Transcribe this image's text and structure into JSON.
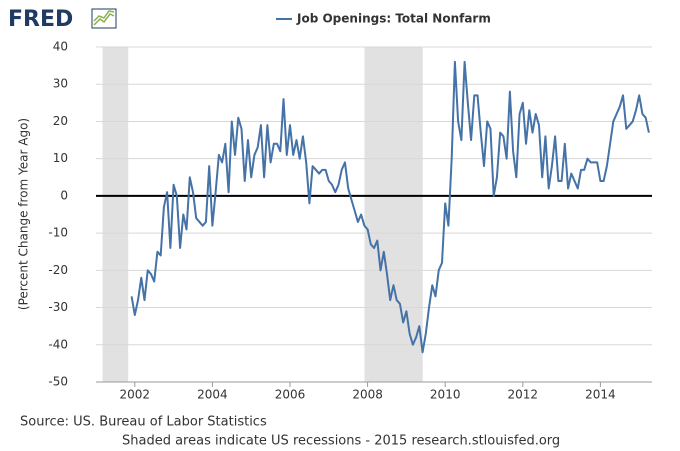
{
  "logo": "FRED",
  "chart_data": {
    "type": "line",
    "ylabel": "(Percent Change from Year Ago)",
    "source": "Source: US. Bureau of Labor Statistics",
    "note": "Shaded areas indicate US recessions - 2015 research.stlouisfed.org",
    "xlim": [
      2001,
      2015.33
    ],
    "xticks": [
      2002,
      2004,
      2006,
      2008,
      2010,
      2012,
      2014
    ],
    "ylim": [
      -50,
      40
    ],
    "yticks": [
      -50,
      -40,
      -30,
      -20,
      -10,
      0,
      10,
      20,
      30,
      40
    ],
    "grid": true,
    "zero_line": true,
    "recessions": [
      [
        2001.17,
        2001.83
      ],
      [
        2007.92,
        2009.42
      ]
    ],
    "x": [
      2001.917,
      2002.0,
      2002.083,
      2002.167,
      2002.25,
      2002.333,
      2002.417,
      2002.5,
      2002.583,
      2002.667,
      2002.75,
      2002.833,
      2002.917,
      2003.0,
      2003.083,
      2003.167,
      2003.25,
      2003.333,
      2003.417,
      2003.5,
      2003.583,
      2003.667,
      2003.75,
      2003.833,
      2003.917,
      2004.0,
      2004.083,
      2004.167,
      2004.25,
      2004.333,
      2004.417,
      2004.5,
      2004.583,
      2004.667,
      2004.75,
      2004.833,
      2004.917,
      2005.0,
      2005.083,
      2005.167,
      2005.25,
      2005.333,
      2005.417,
      2005.5,
      2005.583,
      2005.667,
      2005.75,
      2005.833,
      2005.917,
      2006.0,
      2006.083,
      2006.167,
      2006.25,
      2006.333,
      2006.417,
      2006.5,
      2006.583,
      2006.667,
      2006.75,
      2006.833,
      2006.917,
      2007.0,
      2007.083,
      2007.167,
      2007.25,
      2007.333,
      2007.417,
      2007.5,
      2007.583,
      2007.667,
      2007.75,
      2007.833,
      2007.917,
      2008.0,
      2008.083,
      2008.167,
      2008.25,
      2008.333,
      2008.417,
      2008.5,
      2008.583,
      2008.667,
      2008.75,
      2008.833,
      2008.917,
      2009.0,
      2009.083,
      2009.167,
      2009.25,
      2009.333,
      2009.417,
      2009.5,
      2009.583,
      2009.667,
      2009.75,
      2009.833,
      2009.917,
      2010.0,
      2010.083,
      2010.167,
      2010.25,
      2010.333,
      2010.417,
      2010.5,
      2010.583,
      2010.667,
      2010.75,
      2010.833,
      2010.917,
      2011.0,
      2011.083,
      2011.167,
      2011.25,
      2011.333,
      2011.417,
      2011.5,
      2011.583,
      2011.667,
      2011.75,
      2011.833,
      2011.917,
      2012.0,
      2012.083,
      2012.167,
      2012.25,
      2012.333,
      2012.417,
      2012.5,
      2012.583,
      2012.667,
      2012.75,
      2012.833,
      2012.917,
      2013.0,
      2013.083,
      2013.167,
      2013.25,
      2013.333,
      2013.417,
      2013.5,
      2013.583,
      2013.667,
      2013.75,
      2013.833,
      2013.917,
      2014.0,
      2014.083,
      2014.167,
      2014.25,
      2014.333,
      2014.417,
      2014.5,
      2014.583,
      2014.667,
      2014.75,
      2014.833,
      2014.917,
      2015.0,
      2015.083,
      2015.167,
      2015.25
    ],
    "series": [
      {
        "name": "Job Openings: Total Nonfarm",
        "color": "#4572a7",
        "values": [
          -27,
          -32,
          -28,
          -22,
          -28,
          -20,
          -21,
          -23,
          -15,
          -16,
          -3,
          1,
          -14,
          3,
          0,
          -14,
          -5,
          -9,
          5,
          1,
          -6,
          -7,
          -8,
          -7,
          8,
          -8,
          1,
          11,
          9,
          14,
          1,
          20,
          11,
          21,
          18,
          4,
          15,
          5,
          11,
          13,
          19,
          5,
          19,
          9,
          14,
          14,
          12,
          26,
          11,
          19,
          11,
          15,
          10,
          16,
          9,
          -2,
          8,
          7,
          6,
          7,
          7,
          4,
          3,
          1,
          3,
          7,
          9,
          2,
          -1,
          -4,
          -7,
          -5,
          -8,
          -9,
          -13,
          -14,
          -12,
          -20,
          -15,
          -21,
          -28,
          -24,
          -28,
          -29,
          -34,
          -31,
          -37,
          -40,
          -38,
          -35,
          -42,
          -37,
          -30,
          -24,
          -27,
          -20,
          -18,
          -2,
          -8,
          10,
          36,
          20,
          15,
          36,
          25,
          15,
          27,
          27,
          17,
          8,
          20,
          18,
          0,
          5,
          17,
          16,
          10,
          28,
          12,
          5,
          22,
          25,
          14,
          23,
          17,
          22,
          19,
          5,
          16,
          2,
          8,
          16,
          4,
          4,
          14,
          2,
          6,
          4,
          2,
          7,
          7,
          10,
          9,
          9,
          9,
          4,
          4,
          8,
          14,
          20,
          22,
          24,
          27,
          18,
          19,
          20,
          23,
          27,
          22,
          21,
          17
        ]
      }
    ]
  }
}
